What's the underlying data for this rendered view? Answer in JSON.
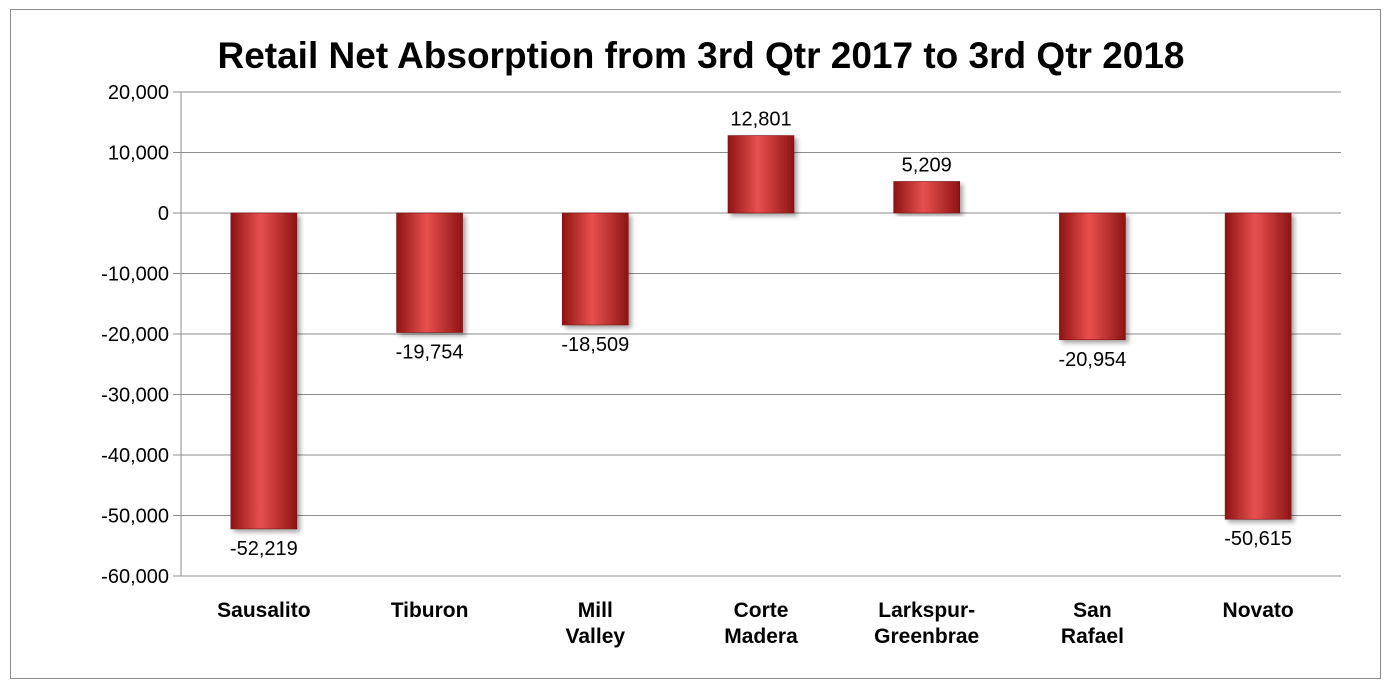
{
  "chart_data": {
    "type": "bar",
    "title": "Retail Net Absorption from 3rd Qtr 2017 to 3rd Qtr 2018",
    "categories": [
      "Sausalito",
      "Tiburon",
      "Mill Valley",
      "Corte Madera",
      "Larkspur-Greenbrae",
      "San Rafael",
      "Novato"
    ],
    "category_label_lines": [
      [
        "Sausalito"
      ],
      [
        "Tiburon"
      ],
      [
        "Mill",
        "Valley"
      ],
      [
        "Corte",
        "Madera"
      ],
      [
        "Larkspur-",
        "Greenbrae"
      ],
      [
        "San",
        "Rafael"
      ],
      [
        "Novato"
      ]
    ],
    "values": [
      -52219,
      -19754,
      -18509,
      12801,
      5209,
      -20954,
      -50615
    ],
    "data_labels": [
      "-52,219",
      "-19,754",
      "-18,509",
      "12,801",
      "5,209",
      "-20,954",
      "-50,615"
    ],
    "ylim": [
      -60000,
      20000
    ],
    "yticks": [
      20000,
      10000,
      0,
      -10000,
      -20000,
      -30000,
      -40000,
      -50000,
      -60000
    ],
    "ytick_labels": [
      "20,000",
      "10,000",
      "0",
      "-10,000",
      "-20,000",
      "-30,000",
      "-40,000",
      "-50,000",
      "-60,000"
    ],
    "xlabel": "",
    "ylabel": "",
    "grid": true,
    "legend": "none",
    "colors": {
      "bar_light": "#e8504f",
      "bar_mid": "#c92a2a",
      "bar_dark": "#8e1414",
      "gridline": "#8c8c8c",
      "border": "#8c8c8c"
    }
  }
}
